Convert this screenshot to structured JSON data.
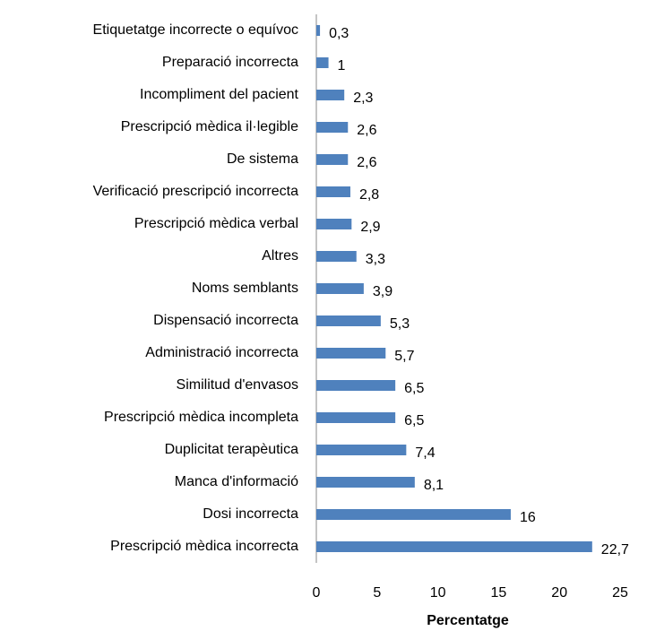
{
  "chart_data": {
    "type": "barh",
    "categories": [
      "Etiquetatge incorrecte o equívoc",
      "Preparació incorrecta",
      "Incompliment del pacient",
      "Prescripció mèdica il·legible",
      "De sistema",
      "Verificació prescripció incorrecta",
      "Prescripció mèdica verbal",
      "Altres",
      "Noms semblants",
      "Dispensació incorrecta",
      "Administració incorrecta",
      "Similitud d'envasos",
      "Prescripció mèdica incompleta",
      "Duplicitat terapèutica",
      "Manca d'informació",
      "Dosi incorrecta",
      "Prescripció mèdica incorrecta"
    ],
    "values": [
      0.3,
      1,
      2.3,
      2.6,
      2.6,
      2.8,
      2.9,
      3.3,
      3.9,
      5.3,
      5.7,
      6.5,
      6.5,
      7.4,
      8.1,
      16,
      22.7
    ],
    "value_labels": [
      "0,3",
      "1",
      "2,3",
      "2,6",
      "2,6",
      "2,8",
      "2,9",
      "3,3",
      "3,9",
      "5,3",
      "5,7",
      "6,5",
      "6,5",
      "7,4",
      "8,1",
      "16",
      "22,7"
    ],
    "color": "#4f81bd",
    "xlim": [
      0,
      25
    ],
    "xticks": [
      0,
      5,
      10,
      15,
      20,
      25
    ],
    "x_label": "Percentatge"
  }
}
